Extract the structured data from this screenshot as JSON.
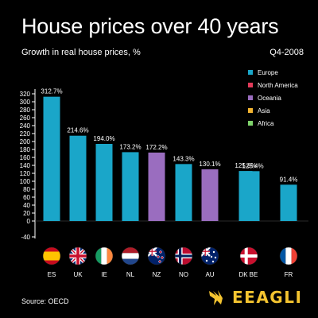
{
  "header": {
    "title": "House prices over 40 years",
    "subtitle": "Growth in real house prices, %",
    "period": "Q4-2008"
  },
  "footer": {
    "source": "Source: OECD",
    "brand": "EEAGLI"
  },
  "colors": {
    "Europe": "#1aa6c9",
    "North America": "#e23b5a",
    "Oceania": "#9a6dbf",
    "Asia": "#f2b431",
    "Africa": "#7fd36b"
  },
  "legend": [
    {
      "label": "Europe",
      "color": "#1aa6c9"
    },
    {
      "label": "North America",
      "color": "#e23b5a"
    },
    {
      "label": "Oceania",
      "color": "#9a6dbf"
    },
    {
      "label": "Asia",
      "color": "#f2b431"
    },
    {
      "label": "Africa",
      "color": "#7fd36b"
    }
  ],
  "chart_data": {
    "type": "bar",
    "title": "House prices over 40 years",
    "subtitle": "Growth in real house prices, %",
    "ylim": [
      -40,
      330
    ],
    "yticks": [
      -40,
      0,
      20,
      40,
      60,
      80,
      100,
      120,
      140,
      160,
      180,
      200,
      220,
      240,
      260,
      280,
      300,
      320
    ],
    "grid": false,
    "legend_position": "top-right",
    "categories": [
      "ES",
      "UK",
      "IE",
      "NL",
      "NZ",
      "NO",
      "AU",
      "DK",
      "BE",
      "FR"
    ],
    "values": [
      312.7,
      214.6,
      194.0,
      173.2,
      172.2,
      143.3,
      130.1,
      125.8,
      125.4,
      91.4
    ],
    "labels": [
      "312.7%",
      "214.6%",
      "194.0%",
      "173.2%",
      "172.2%",
      "143.3%",
      "130.1%",
      "125.8%",
      "125.4%",
      "91.4%"
    ],
    "regions": [
      "Europe",
      "Europe",
      "Europe",
      "Europe",
      "Oceania",
      "Europe",
      "Oceania",
      "Europe",
      "Europe",
      "Europe"
    ],
    "flags": [
      "spain-flag-icon",
      "uk-flag-icon",
      "ireland-flag-icon",
      "netherlands-flag-icon",
      "new-zealand-flag-icon",
      "norway-flag-icon",
      "australia-flag-icon",
      "denmark-flag-icon",
      "belgium-flag-icon",
      "france-flag-icon"
    ]
  }
}
